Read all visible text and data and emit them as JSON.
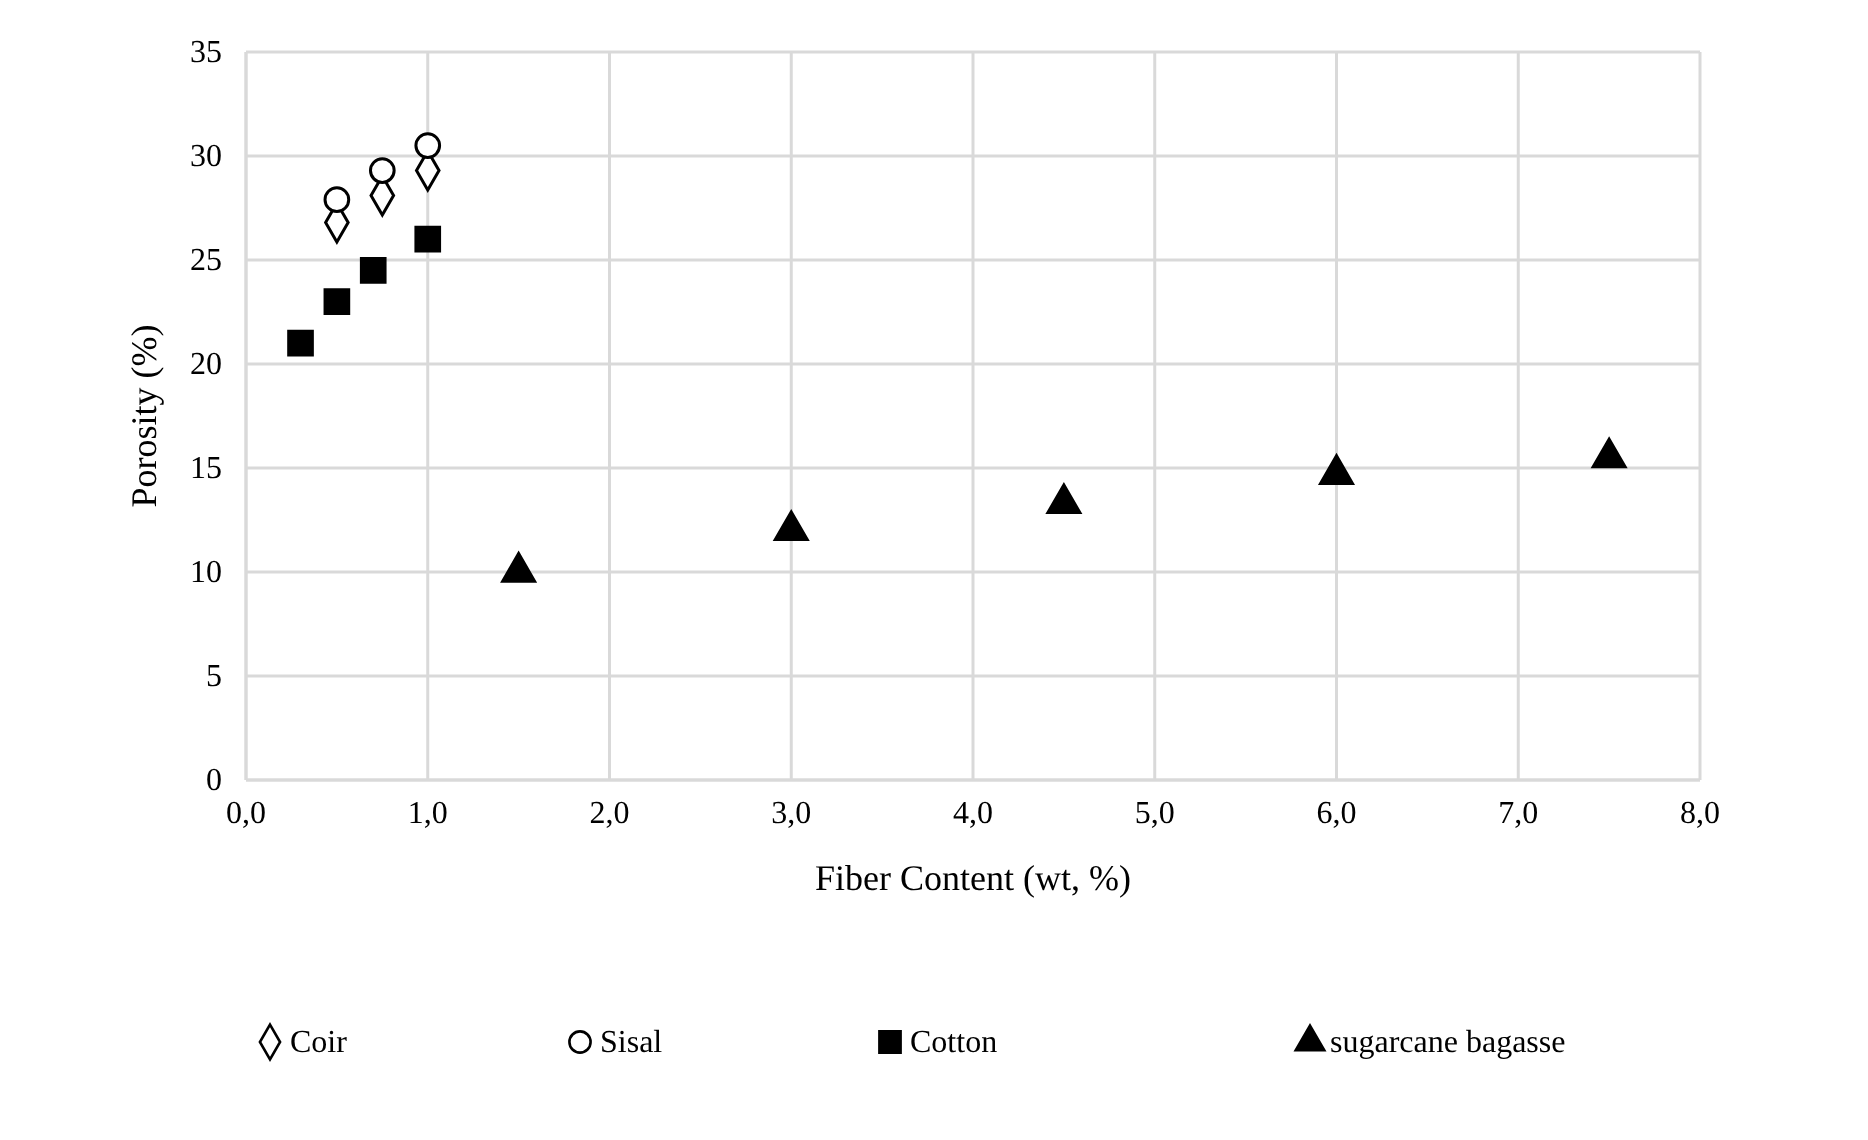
{
  "chart_data": {
    "type": "scatter",
    "xlabel": "Fiber Content (wt, %)",
    "ylabel": "Porosity (%)",
    "xlim": [
      0,
      8
    ],
    "xticks": [
      {
        "value": 0,
        "label": "0,0"
      },
      {
        "value": 1,
        "label": "1,0"
      },
      {
        "value": 2,
        "label": "2,0"
      },
      {
        "value": 3,
        "label": "3,0"
      },
      {
        "value": 4,
        "label": "4,0"
      },
      {
        "value": 5,
        "label": "5,0"
      },
      {
        "value": 6,
        "label": "6,0"
      },
      {
        "value": 7,
        "label": "7,0"
      },
      {
        "value": 8,
        "label": "8,0"
      }
    ],
    "ylim": [
      0,
      35
    ],
    "yticks": [
      0,
      5,
      10,
      15,
      20,
      25,
      30,
      35
    ],
    "grid": true,
    "legend": "bottom",
    "series": [
      {
        "name": "Coir",
        "color": "#ffffff",
        "marker": "diamond",
        "x": [
          0.5,
          0.75,
          1.0
        ],
        "values": [
          26.8,
          28.1,
          29.3
        ]
      },
      {
        "name": "Sisal",
        "color": "#ffffff",
        "marker": "circle",
        "x": [
          0.5,
          0.75,
          1.0
        ],
        "values": [
          27.9,
          29.3,
          30.5
        ]
      },
      {
        "name": "Cotton",
        "color": "#000000",
        "marker": "square",
        "x": [
          0.3,
          0.5,
          0.7,
          1.0
        ],
        "values": [
          21,
          23,
          24.5,
          26
        ]
      },
      {
        "name": "sugarcane bagasse",
        "color": "#000000",
        "marker": "triangle",
        "x": [
          1.5,
          3,
          4.5,
          6,
          7.5
        ],
        "values": [
          10,
          12,
          13.3,
          14.7,
          15.5
        ]
      }
    ]
  }
}
